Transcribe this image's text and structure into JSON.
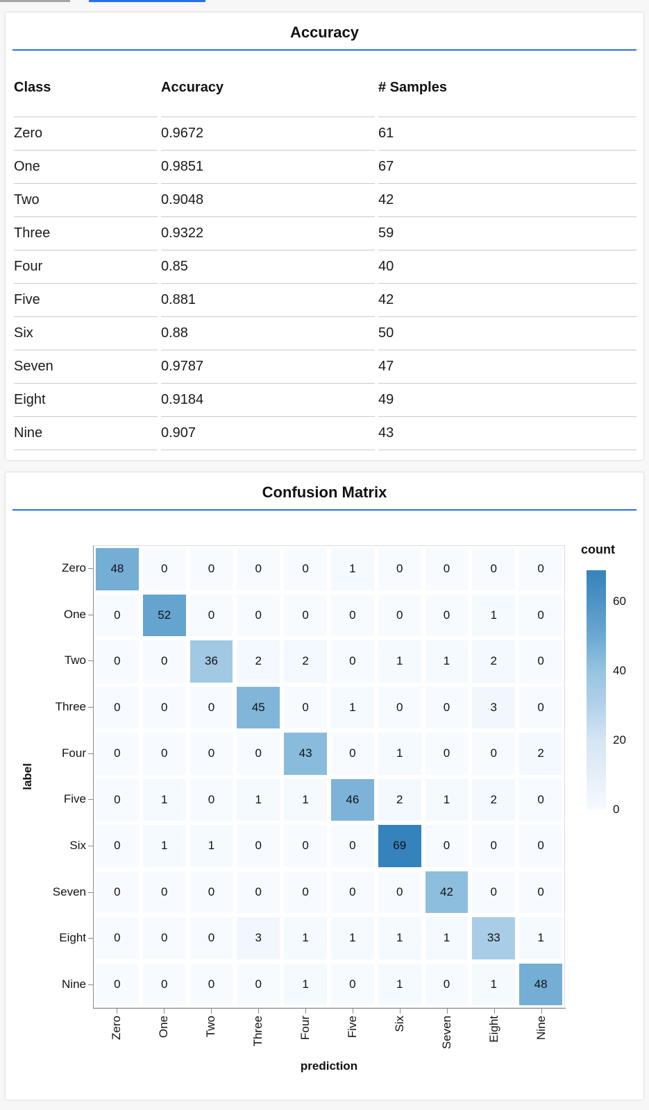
{
  "accent_color": "#2570eb",
  "top_bars": {
    "gray": "#a6a6a6",
    "blue": "#2570eb"
  },
  "chart_data": [
    {
      "type": "table",
      "title": "Accuracy",
      "columns": [
        "Class",
        "Accuracy",
        "# Samples"
      ],
      "rows": [
        [
          "Zero",
          "0.9672",
          "61"
        ],
        [
          "One",
          "0.9851",
          "67"
        ],
        [
          "Two",
          "0.9048",
          "42"
        ],
        [
          "Three",
          "0.9322",
          "59"
        ],
        [
          "Four",
          "0.85",
          "40"
        ],
        [
          "Five",
          "0.881",
          "42"
        ],
        [
          "Six",
          "0.88",
          "50"
        ],
        [
          "Seven",
          "0.9787",
          "47"
        ],
        [
          "Eight",
          "0.9184",
          "49"
        ],
        [
          "Nine",
          "0.907",
          "43"
        ]
      ]
    },
    {
      "type": "heatmap",
      "title": "Confusion Matrix",
      "xlabel": "prediction",
      "ylabel": "label",
      "x_categories": [
        "Zero",
        "One",
        "Two",
        "Three",
        "Four",
        "Five",
        "Six",
        "Seven",
        "Eight",
        "Nine"
      ],
      "y_categories": [
        "Zero",
        "One",
        "Two",
        "Three",
        "Four",
        "Five",
        "Six",
        "Seven",
        "Eight",
        "Nine"
      ],
      "matrix": [
        [
          48,
          0,
          0,
          0,
          0,
          1,
          0,
          0,
          0,
          0
        ],
        [
          0,
          52,
          0,
          0,
          0,
          0,
          0,
          0,
          1,
          0
        ],
        [
          0,
          0,
          36,
          2,
          2,
          0,
          1,
          1,
          2,
          0
        ],
        [
          0,
          0,
          0,
          45,
          0,
          1,
          0,
          0,
          3,
          0
        ],
        [
          0,
          0,
          0,
          0,
          43,
          0,
          1,
          0,
          0,
          2
        ],
        [
          0,
          1,
          0,
          1,
          1,
          46,
          2,
          1,
          2,
          0
        ],
        [
          0,
          1,
          1,
          0,
          0,
          0,
          69,
          0,
          0,
          0
        ],
        [
          0,
          0,
          0,
          0,
          0,
          0,
          0,
          42,
          0,
          0
        ],
        [
          0,
          0,
          0,
          3,
          1,
          1,
          1,
          1,
          33,
          1
        ],
        [
          0,
          0,
          0,
          0,
          1,
          0,
          1,
          0,
          1,
          48
        ]
      ],
      "legend": {
        "title": "count",
        "ticks": [
          60,
          40,
          20,
          0
        ],
        "position": "right"
      },
      "domain": [
        0,
        69
      ],
      "color_low": "#f7fbff",
      "color_high": "#3583bd",
      "grid": false
    }
  ]
}
